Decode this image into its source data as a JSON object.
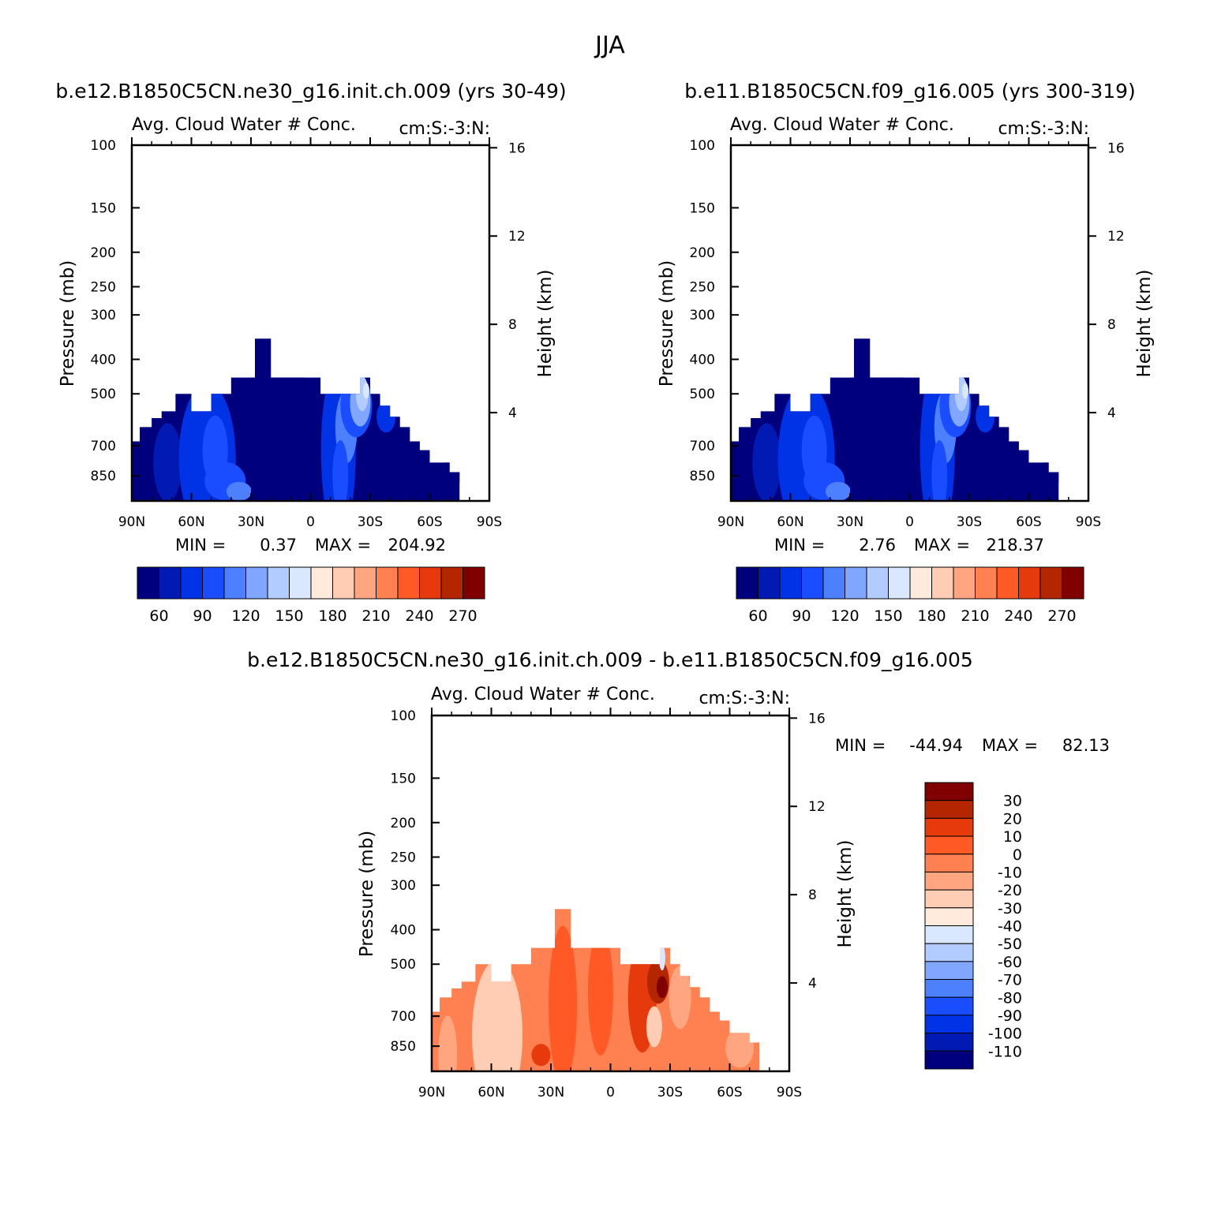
{
  "title": "JJA",
  "colors": {
    "abs_levels": [
      "#00007f",
      "#001ab3",
      "#0033e6",
      "#1a4dff",
      "#4d80ff",
      "#80a6ff",
      "#b3ccff",
      "#d9e8ff",
      "#ffeadb",
      "#ffcdb3",
      "#ffa680",
      "#ff8050",
      "#ff5a26",
      "#e63a0d",
      "#b32600",
      "#800000"
    ],
    "diff_levels": [
      "#00007f",
      "#001ab3",
      "#0033e6",
      "#1a4dff",
      "#4d80ff",
      "#80a6ff",
      "#b3ccff",
      "#d9e8ff",
      "#ffeadb",
      "#ffcdb3",
      "#ffa680",
      "#ff8050",
      "#ff5a26",
      "#e63a0d",
      "#b32600",
      "#800000"
    ]
  },
  "panels": [
    {
      "case_title": "b.e12.B1850C5CN.ne30_g16.init.ch.009 (yrs 30-49)",
      "var_title": "Avg. Cloud Water # Conc.",
      "units": "cm:S:-3:N:",
      "ylabel_left": "Pressure (mb)",
      "ylabel_right": "Height (km)",
      "min_label": "MIN =",
      "min_value": "0.37",
      "max_label": "MAX =",
      "max_value": "204.92",
      "colorbar_labels": [
        "60",
        "90",
        "120",
        "150",
        "180",
        "210",
        "240",
        "270"
      ]
    },
    {
      "case_title": "b.e11.B1850C5CN.f09_g16.005 (yrs 300-319)",
      "var_title": "Avg. Cloud Water # Conc.",
      "units": "cm:S:-3:N:",
      "ylabel_left": "Pressure (mb)",
      "ylabel_right": "Height (km)",
      "min_label": "MIN =",
      "min_value": "2.76",
      "max_label": "MAX =",
      "max_value": "218.37",
      "colorbar_labels": [
        "60",
        "90",
        "120",
        "150",
        "180",
        "210",
        "240",
        "270"
      ]
    },
    {
      "case_title": "b.e12.B1850C5CN.ne30_g16.init.ch.009 - b.e11.B1850C5CN.f09_g16.005",
      "var_title": "Avg. Cloud Water # Conc.",
      "units": "cm:S:-3:N:",
      "ylabel_left": "Pressure (mb)",
      "ylabel_right": "Height (km)",
      "min_label": "MIN =",
      "min_value": "-44.94",
      "max_label": "MAX =",
      "max_value": "82.13",
      "colorbar_labels": [
        "30",
        "20",
        "10",
        "0",
        "-10",
        "-20",
        "-30",
        "-40",
        "-50",
        "-60",
        "-70",
        "-80",
        "-90",
        "-100",
        "-110"
      ]
    }
  ],
  "axes": {
    "x_ticks": [
      "90N",
      "60N",
      "30N",
      "0",
      "30S",
      "60S",
      "90S"
    ],
    "x_values": [
      90,
      60,
      30,
      0,
      -30,
      -60,
      -90
    ],
    "p_ticks": [
      "100",
      "150",
      "200",
      "250",
      "300",
      "400",
      "500",
      "700",
      "850"
    ],
    "p_values": [
      100,
      150,
      200,
      250,
      300,
      400,
      500,
      700,
      850
    ],
    "p_range": [
      100,
      1000
    ],
    "z_ticks": [
      "4",
      "8",
      "12",
      "16"
    ],
    "z_values": [
      4,
      8,
      12,
      16
    ],
    "p_scale": "log"
  },
  "chart_data": [
    {
      "type": "heatmap",
      "title": "Avg. Cloud Water # Conc.",
      "xlabel": "",
      "ylabel": "Pressure (mb)",
      "ylabel_right": "Height (km)",
      "x_ticks": [
        "90N",
        "60N",
        "30N",
        "0",
        "30S",
        "60S",
        "90S"
      ],
      "min": 0.37,
      "max": 204.92,
      "contour_levels": [
        45,
        60,
        75,
        90,
        105,
        120,
        135,
        150,
        165,
        180,
        195,
        210,
        225,
        240,
        255,
        270
      ],
      "cloud_top_profile": {
        "lat": [
          90,
          86,
          80,
          75,
          68,
          65,
          60,
          55,
          50,
          40,
          35,
          30,
          28,
          20,
          10,
          5,
          0,
          -5,
          -10,
          -25,
          -30,
          -35,
          -40,
          -45,
          -50,
          -55,
          -60,
          -65,
          -70,
          -75
        ],
        "top_pressure": [
          680,
          620,
          585,
          560,
          500,
          500,
          560,
          560,
          500,
          450,
          450,
          450,
          350,
          450,
          450,
          450,
          450,
          500,
          500,
          450,
          500,
          540,
          580,
          620,
          680,
          720,
          780,
          780,
          830,
          1000
        ]
      }
    },
    {
      "type": "heatmap",
      "title": "Avg. Cloud Water # Conc.",
      "xlabel": "",
      "ylabel": "Pressure (mb)",
      "ylabel_right": "Height (km)",
      "x_ticks": [
        "90N",
        "60N",
        "30N",
        "0",
        "30S",
        "60S",
        "90S"
      ],
      "min": 2.76,
      "max": 218.37,
      "contour_levels": [
        45,
        60,
        75,
        90,
        105,
        120,
        135,
        150,
        165,
        180,
        195,
        210,
        225,
        240,
        255,
        270
      ],
      "cloud_top_profile": {
        "lat": [
          90,
          86,
          80,
          75,
          68,
          65,
          60,
          55,
          50,
          40,
          35,
          30,
          28,
          20,
          10,
          5,
          0,
          -5,
          -10,
          -25,
          -30,
          -35,
          -40,
          -45,
          -50,
          -55,
          -60,
          -65,
          -70,
          -75
        ],
        "top_pressure": [
          680,
          620,
          585,
          560,
          500,
          500,
          560,
          560,
          500,
          450,
          450,
          450,
          350,
          450,
          450,
          450,
          450,
          500,
          500,
          450,
          500,
          540,
          580,
          620,
          680,
          720,
          780,
          780,
          830,
          1000
        ]
      }
    },
    {
      "type": "heatmap",
      "title": "Avg. Cloud Water # Conc.",
      "xlabel": "",
      "ylabel": "Pressure (mb)",
      "ylabel_right": "Height (km)",
      "x_ticks": [
        "90N",
        "60N",
        "30N",
        "0",
        "30S",
        "60S",
        "90S"
      ],
      "min": -44.94,
      "max": 82.13,
      "contour_levels": [
        30,
        20,
        10,
        0,
        -10,
        -20,
        -30,
        -40,
        -50,
        -60,
        -70,
        -80,
        -90,
        -100,
        -110
      ]
    }
  ]
}
